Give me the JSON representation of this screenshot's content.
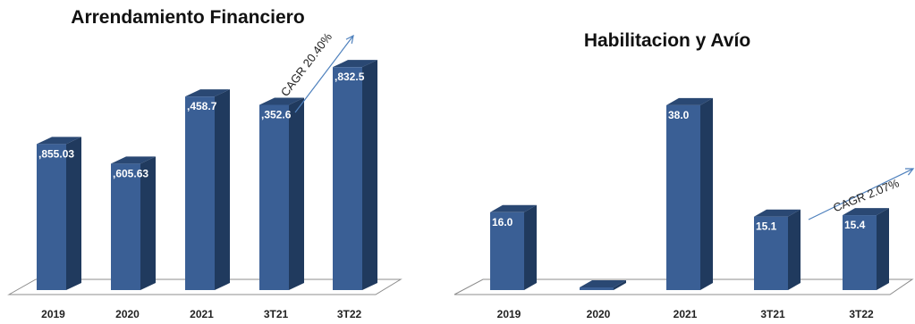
{
  "chart_data": [
    {
      "type": "bar",
      "title": "Arrendamiento Financiero",
      "categories": [
        "2019",
        "2020",
        "2021",
        "3T21",
        "3T22"
      ],
      "values": [
        1855.03,
        1605.63,
        2458.7,
        2352.6,
        2832.5
      ],
      "data_labels": [
        ",855.03",
        ",605.63",
        ",458.7",
        ",352.6",
        ",832.5"
      ],
      "annotation": "CAGR 20.40%",
      "style": "3d-column",
      "colors": {
        "front": "#3a5f95",
        "side": "#203a5e",
        "top": "#2a4873"
      },
      "grid": false,
      "legend": "none"
    },
    {
      "type": "bar",
      "title": "Habilitacion y Avío",
      "categories": [
        "2019",
        "2020",
        "2021",
        "3T21",
        "3T22"
      ],
      "values": [
        16.0,
        0,
        38.0,
        15.1,
        15.4
      ],
      "data_labels": [
        "16.0",
        "",
        "38.0",
        "15.1",
        "15.4"
      ],
      "annotation": "CAGR  2.07%",
      "style": "3d-column",
      "colors": {
        "front": "#3a5f95",
        "side": "#203a5e",
        "top": "#2a4873"
      },
      "grid": false,
      "legend": "none"
    }
  ]
}
